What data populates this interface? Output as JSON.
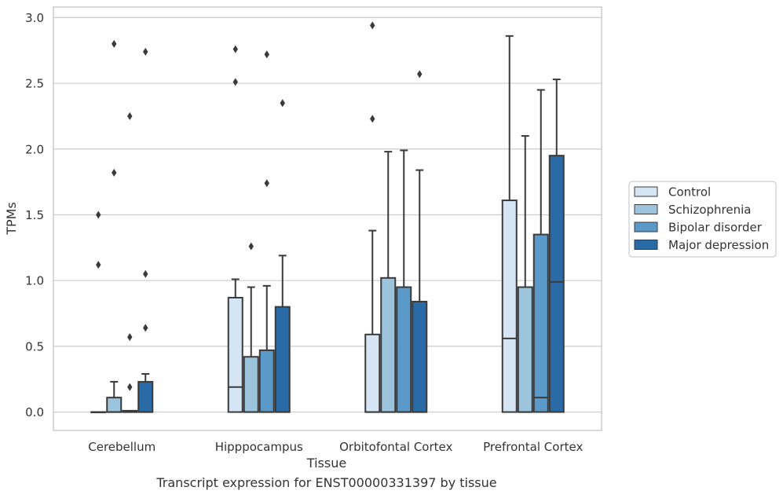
{
  "caption": "Transcript expression for ENST00000331397 by tissue",
  "chart_data": {
    "type": "box",
    "xlabel": "Tissue",
    "ylabel": "TPMs",
    "ylim": [
      -0.14,
      3.08
    ],
    "yticks": [
      0.0,
      0.5,
      1.0,
      1.5,
      2.0,
      2.5,
      3.0
    ],
    "ytick_labels": [
      "0.0",
      "0.5",
      "1.0",
      "1.5",
      "2.0",
      "2.5",
      "3.0"
    ],
    "grid": true,
    "legend_position": "right",
    "categories": [
      "Cerebellum",
      "Hipppocampus",
      "Orbitofontal Cortex",
      "Prefrontal Cortex"
    ],
    "series": [
      {
        "name": "Control",
        "color": "#d6e5f4",
        "boxes": [
          {
            "q1": 0.0,
            "median": 0.0,
            "q3": 0.0,
            "whisker_low": 0.0,
            "whisker_high": 0.0,
            "outliers": [
              1.12,
              1.5
            ]
          },
          {
            "q1": 0.0,
            "median": 0.19,
            "q3": 0.87,
            "whisker_low": 0.0,
            "whisker_high": 1.01,
            "outliers": [
              2.51,
              2.76
            ]
          },
          {
            "q1": 0.0,
            "median": 0.0,
            "q3": 0.59,
            "whisker_low": 0.0,
            "whisker_high": 1.38,
            "outliers": [
              2.23,
              2.94
            ]
          },
          {
            "q1": 0.0,
            "median": 0.56,
            "q3": 1.61,
            "whisker_low": 0.0,
            "whisker_high": 2.86,
            "outliers": []
          }
        ]
      },
      {
        "name": "Schizophrenia",
        "color": "#9cc5dd",
        "boxes": [
          {
            "q1": 0.0,
            "median": 0.0,
            "q3": 0.11,
            "whisker_low": 0.0,
            "whisker_high": 0.23,
            "outliers": [
              1.82,
              2.8
            ]
          },
          {
            "q1": 0.0,
            "median": 0.0,
            "q3": 0.42,
            "whisker_low": 0.0,
            "whisker_high": 0.95,
            "outliers": [
              1.26
            ]
          },
          {
            "q1": 0.0,
            "median": 0.0,
            "q3": 1.02,
            "whisker_low": 0.0,
            "whisker_high": 1.98,
            "outliers": []
          },
          {
            "q1": 0.0,
            "median": 0.0,
            "q3": 0.95,
            "whisker_low": 0.0,
            "whisker_high": 2.1,
            "outliers": []
          }
        ]
      },
      {
        "name": "Bipolar disorder",
        "color": "#5b9ac8",
        "boxes": [
          {
            "q1": 0.0,
            "median": 0.0,
            "q3": 0.01,
            "whisker_low": 0.0,
            "whisker_high": 0.01,
            "outliers": [
              0.19,
              0.57,
              2.25
            ]
          },
          {
            "q1": 0.0,
            "median": 0.0,
            "q3": 0.47,
            "whisker_low": 0.0,
            "whisker_high": 0.96,
            "outliers": [
              1.74,
              2.72
            ]
          },
          {
            "q1": 0.0,
            "median": 0.0,
            "q3": 0.95,
            "whisker_low": 0.0,
            "whisker_high": 1.99,
            "outliers": []
          },
          {
            "q1": 0.0,
            "median": 0.11,
            "q3": 1.35,
            "whisker_low": 0.0,
            "whisker_high": 2.45,
            "outliers": []
          }
        ]
      },
      {
        "name": "Major depression",
        "color": "#2a6aa6",
        "boxes": [
          {
            "q1": 0.0,
            "median": 0.0,
            "q3": 0.23,
            "whisker_low": 0.0,
            "whisker_high": 0.29,
            "outliers": [
              0.64,
              1.05,
              2.74
            ]
          },
          {
            "q1": 0.0,
            "median": 0.0,
            "q3": 0.8,
            "whisker_low": 0.0,
            "whisker_high": 1.19,
            "outliers": [
              2.35
            ]
          },
          {
            "q1": 0.0,
            "median": 0.0,
            "q3": 0.84,
            "whisker_low": 0.0,
            "whisker_high": 1.84,
            "outliers": [
              2.57
            ]
          },
          {
            "q1": 0.0,
            "median": 0.99,
            "q3": 1.95,
            "whisker_low": 0.0,
            "whisker_high": 2.53,
            "outliers": []
          }
        ]
      }
    ]
  }
}
